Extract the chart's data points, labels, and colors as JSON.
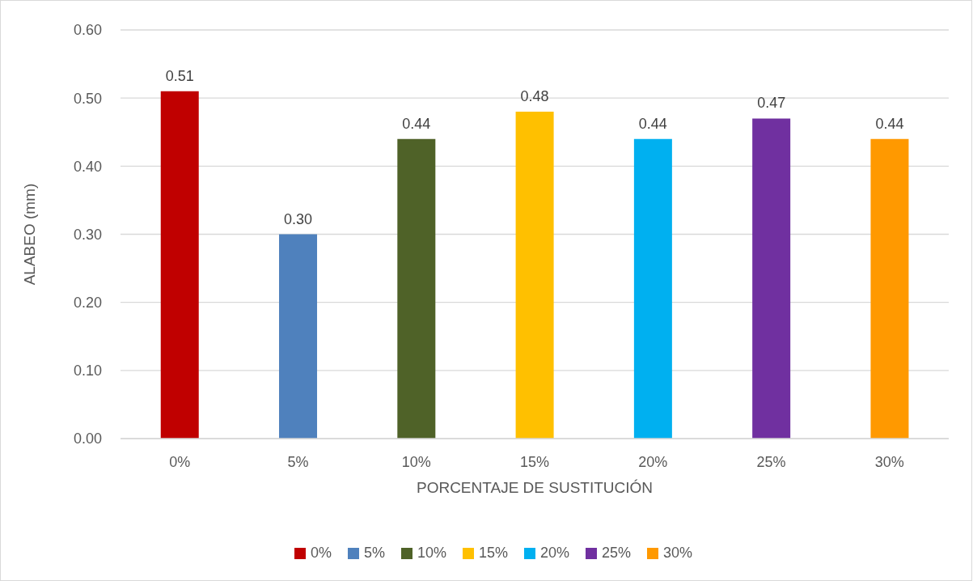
{
  "chart_data": {
    "type": "bar",
    "xlabel": "PORCENTAJE DE SUSTITUCIÓN",
    "ylabel": "ALABEO (mm)",
    "categories": [
      "0%",
      "5%",
      "10%",
      "15%",
      "20%",
      "25%",
      "30%"
    ],
    "series": [
      {
        "name": "0%",
        "color": "#c00000",
        "values": [
          0.51,
          null,
          null,
          null,
          null,
          null,
          null
        ],
        "value_labels": [
          "0.51",
          null,
          null,
          null,
          null,
          null,
          null
        ]
      },
      {
        "name": "5%",
        "color": "#4f81bd",
        "values": [
          null,
          0.3,
          null,
          null,
          null,
          null,
          null
        ],
        "value_labels": [
          null,
          "0.30",
          null,
          null,
          null,
          null,
          null
        ]
      },
      {
        "name": "10%",
        "color": "#4f6228",
        "values": [
          null,
          null,
          0.44,
          null,
          null,
          null,
          null
        ],
        "value_labels": [
          null,
          null,
          "0.44",
          null,
          null,
          null,
          null
        ]
      },
      {
        "name": "15%",
        "color": "#ffc000",
        "values": [
          null,
          null,
          null,
          0.48,
          null,
          null,
          null
        ],
        "value_labels": [
          null,
          null,
          null,
          "0.48",
          null,
          null,
          null
        ]
      },
      {
        "name": "20%",
        "color": "#00b0f0",
        "values": [
          null,
          null,
          null,
          null,
          0.44,
          null,
          null
        ],
        "value_labels": [
          null,
          null,
          null,
          null,
          "0.44",
          null,
          null
        ]
      },
      {
        "name": "25%",
        "color": "#7030a0",
        "values": [
          null,
          null,
          null,
          null,
          null,
          0.47,
          null
        ],
        "value_labels": [
          null,
          null,
          null,
          null,
          null,
          "0.47",
          null
        ]
      },
      {
        "name": "30%",
        "color": "#ff9900",
        "values": [
          null,
          null,
          null,
          null,
          null,
          null,
          0.44
        ],
        "value_labels": [
          null,
          null,
          null,
          null,
          null,
          null,
          "0.44"
        ]
      }
    ],
    "stacked": true,
    "ylim": [
      0,
      0.6
    ],
    "yticks": [
      {
        "value": 0,
        "label": "0.00"
      },
      {
        "value": 0.1,
        "label": "0.10"
      },
      {
        "value": 0.2,
        "label": "0.20"
      },
      {
        "value": 0.3,
        "label": "0.30"
      },
      {
        "value": 0.4,
        "label": "0.40"
      },
      {
        "value": 0.5,
        "label": "0.50"
      },
      {
        "value": 0.6,
        "label": "0.60"
      }
    ],
    "grid": "y",
    "legend": "bottom"
  }
}
